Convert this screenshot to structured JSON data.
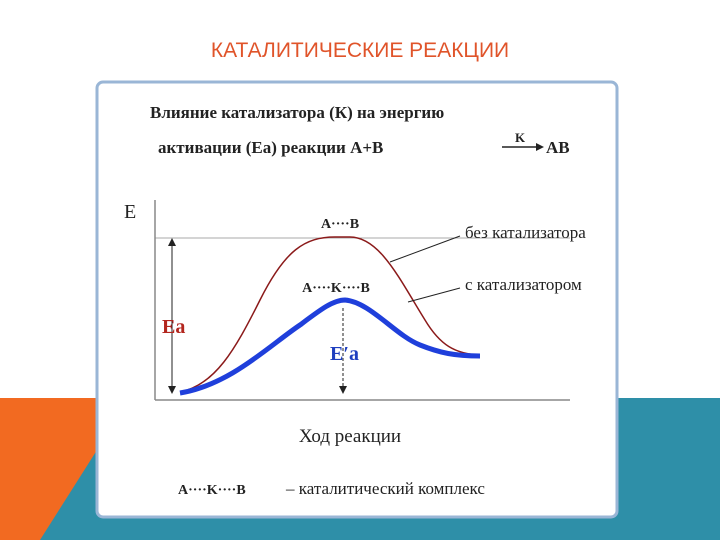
{
  "slide_title": "КАТАЛИТИЧЕСКИЕ РЕАКЦИИ",
  "heading": {
    "line1": "Влияние катализатора (К) на энергию",
    "line2": "активации (Eа) реакции A+B",
    "arrow_label": "K",
    "product": "AB"
  },
  "diagram": {
    "y_axis_label": "E",
    "x_axis_label": "Ход реакции",
    "uncatalyzed_complex": "A····B",
    "catalyzed_complex": "A····K····B",
    "label_uncatalyzed": "без катализатора",
    "label_catalyzed": "с катализатором",
    "ea": "Eа",
    "ea_prime": "E′а"
  },
  "footer": {
    "complex": "A····K····B",
    "description": "– каталитический комплекс"
  }
}
